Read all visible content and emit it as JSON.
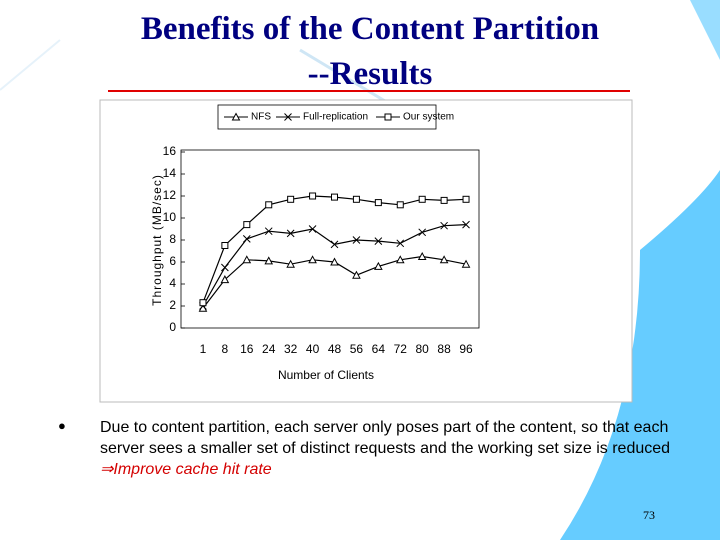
{
  "title": [
    "Benefits of the Content Partition",
    "--Results"
  ],
  "bullet": {
    "text": "Due to content partition, each server only poses part of the content, so that each server sees a smaller set of distinct requests and the working set size is reduced ",
    "emphasis": "⇒Improve cache hit rate"
  },
  "page_number": "73",
  "chart_data": {
    "type": "line",
    "x_label": "Number of Clients",
    "y_label": "Throughput (MB/sec)",
    "categories": [
      "1",
      "8",
      "16",
      "24",
      "32",
      "40",
      "48",
      "56",
      "64",
      "72",
      "80",
      "88",
      "96"
    ],
    "series": [
      {
        "name": "NFS",
        "color": "#000000",
        "marker": "triangle",
        "values": [
          1.8,
          4.4,
          6.2,
          6.1,
          5.8,
          6.2,
          6.0,
          4.8,
          5.6,
          6.2,
          6.5,
          6.2,
          5.8
        ]
      },
      {
        "name": "Full-replication",
        "color": "#000000",
        "marker": "x",
        "values": [
          2.0,
          5.5,
          8.1,
          8.8,
          8.6,
          9.0,
          7.6,
          8.0,
          7.9,
          7.7,
          8.7,
          9.3,
          9.4
        ]
      },
      {
        "name": "Our system",
        "color": "#000000",
        "marker": "square",
        "values": [
          2.3,
          7.5,
          9.4,
          11.2,
          11.7,
          12.0,
          11.9,
          11.7,
          11.4,
          11.2,
          11.7,
          11.6,
          11.7
        ]
      }
    ],
    "ylim": [
      0,
      16
    ],
    "yticks": [
      0,
      2,
      4,
      6,
      8,
      10,
      12,
      14,
      16
    ],
    "legend": "top"
  }
}
